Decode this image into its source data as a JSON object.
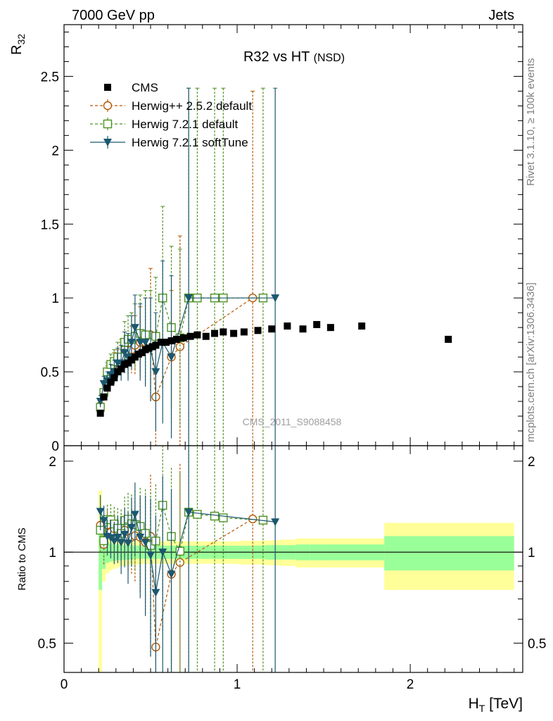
{
  "header": {
    "left": "7000 GeV pp",
    "right": "Jets",
    "side_top": "Rivet 3.1.10, ≥ 100k events",
    "side_bottom": "mcplots.cern.ch [arXiv:1306.3436]",
    "watermark": "CMS_2011_S9088458"
  },
  "chart_data": {
    "type": "scatter",
    "title": "R32 vs HT",
    "title_suffix": "(NSD)",
    "ylabel": "R",
    "ylabel_sub": "32",
    "xlabel": "H",
    "xlabel_sub": "T",
    "xlabel_unit": " [TeV]",
    "ratio_ylabel": "Ratio to CMS",
    "xlim": [
      0,
      2.65
    ],
    "ylim": [
      0,
      2.85
    ],
    "ratio_ylim": [
      0.4,
      2.25
    ],
    "x_ticks": [
      "0",
      "1",
      "2"
    ],
    "y_ticks": [
      "0",
      "0.5",
      "1",
      "1.5",
      "2",
      "2.5"
    ],
    "ratio_y_ticks": [
      "0.5",
      "1",
      "2"
    ],
    "legend_position": "top-left",
    "colors": {
      "cms": "#000000",
      "herwigpp": "#b35806",
      "herwig721": "#4d9221",
      "softtune": "#1b5870",
      "band_inner": "#99ff99",
      "band_outer": "#ffff99"
    },
    "series": [
      {
        "name": "CMS",
        "marker": "square-filled",
        "x": [
          0.21,
          0.23,
          0.25,
          0.27,
          0.29,
          0.31,
          0.33,
          0.35,
          0.37,
          0.39,
          0.41,
          0.43,
          0.45,
          0.47,
          0.49,
          0.51,
          0.53,
          0.56,
          0.59,
          0.62,
          0.65,
          0.69,
          0.73,
          0.77,
          0.82,
          0.87,
          0.92,
          0.98,
          1.04,
          1.12,
          1.2,
          1.29,
          1.38,
          1.46,
          1.54,
          1.72,
          2.22
        ],
        "y": [
          0.22,
          0.33,
          0.39,
          0.43,
          0.46,
          0.5,
          0.52,
          0.55,
          0.56,
          0.58,
          0.6,
          0.62,
          0.63,
          0.65,
          0.66,
          0.67,
          0.68,
          0.7,
          0.7,
          0.71,
          0.72,
          0.73,
          0.74,
          0.75,
          0.74,
          0.76,
          0.77,
          0.76,
          0.77,
          0.78,
          0.79,
          0.81,
          0.79,
          0.82,
          0.8,
          0.81,
          0.72
        ]
      },
      {
        "name": "Herwig++ 2.5.2 default",
        "marker": "circle-open",
        "x": [
          0.21,
          0.23,
          0.25,
          0.27,
          0.29,
          0.31,
          0.33,
          0.35,
          0.37,
          0.39,
          0.41,
          0.44,
          0.47,
          0.5,
          0.53,
          0.62,
          0.67,
          1.09
        ],
        "y": [
          0.27,
          0.35,
          0.48,
          0.5,
          0.55,
          0.56,
          0.6,
          0.65,
          0.62,
          0.65,
          0.68,
          0.7,
          0.7,
          0.75,
          0.33,
          0.6,
          0.67,
          1.0
        ],
        "yerr": [
          0.04,
          0.05,
          0.06,
          0.07,
          0.08,
          0.09,
          0.1,
          0.12,
          0.14,
          0.16,
          0.2,
          0.24,
          0.3,
          0.45,
          0.35,
          0.45,
          0.75,
          1.4
        ]
      },
      {
        "name": "Herwig 7.2.1 default",
        "marker": "square-open",
        "x": [
          0.21,
          0.23,
          0.25,
          0.27,
          0.29,
          0.31,
          0.33,
          0.35,
          0.37,
          0.39,
          0.41,
          0.44,
          0.47,
          0.5,
          0.53,
          0.57,
          0.62,
          0.67,
          0.72,
          0.77,
          0.87,
          0.92,
          1.15
        ],
        "y": [
          0.26,
          0.36,
          0.5,
          0.55,
          0.57,
          0.6,
          0.6,
          0.7,
          0.72,
          0.72,
          0.74,
          0.76,
          0.75,
          0.7,
          0.74,
          1.0,
          0.8,
          0.73,
          1.0,
          1.0,
          1.0,
          1.0,
          1.0
        ],
        "yerr": [
          0.04,
          0.05,
          0.06,
          0.07,
          0.08,
          0.1,
          0.12,
          0.14,
          0.16,
          0.18,
          0.22,
          0.26,
          0.3,
          0.35,
          0.4,
          0.62,
          0.55,
          0.6,
          1.42,
          1.42,
          1.42,
          1.42,
          1.42
        ]
      },
      {
        "name": "Herwig 7.2.1 softTune",
        "marker": "triangle-down-filled",
        "x": [
          0.21,
          0.23,
          0.25,
          0.27,
          0.29,
          0.31,
          0.33,
          0.35,
          0.37,
          0.39,
          0.41,
          0.44,
          0.47,
          0.5,
          0.53,
          0.57,
          0.62,
          0.72,
          1.22
        ],
        "y": [
          0.3,
          0.42,
          0.44,
          0.48,
          0.5,
          0.56,
          0.56,
          0.63,
          0.6,
          0.7,
          0.8,
          0.7,
          0.7,
          0.65,
          0.5,
          0.7,
          0.6,
          1.0,
          1.0
        ],
        "yerr": [
          0.04,
          0.05,
          0.06,
          0.07,
          0.08,
          0.1,
          0.12,
          0.14,
          0.16,
          0.18,
          0.22,
          0.26,
          0.3,
          0.35,
          0.4,
          0.55,
          0.55,
          1.42,
          1.42
        ]
      }
    ],
    "ratio_bands": {
      "x_edges": [
        0.2,
        0.22,
        0.24,
        0.26,
        0.28,
        0.3,
        0.32,
        0.34,
        0.36,
        0.38,
        0.4,
        0.42,
        0.44,
        0.46,
        0.48,
        0.5,
        0.52,
        0.54,
        0.575,
        0.605,
        0.635,
        0.67,
        0.71,
        0.75,
        0.79,
        0.845,
        0.895,
        0.95,
        1.01,
        1.08,
        1.16,
        1.25,
        1.34,
        1.42,
        1.5,
        1.85,
        2.6
      ],
      "inner_half": [
        0.25,
        0.12,
        0.08,
        0.07,
        0.065,
        0.06,
        0.06,
        0.055,
        0.055,
        0.055,
        0.05,
        0.05,
        0.05,
        0.05,
        0.05,
        0.05,
        0.05,
        0.05,
        0.05,
        0.05,
        0.05,
        0.05,
        0.05,
        0.05,
        0.05,
        0.05,
        0.05,
        0.05,
        0.05,
        0.05,
        0.055,
        0.055,
        0.06,
        0.06,
        0.06,
        0.13
      ],
      "outer_half": [
        0.6,
        0.2,
        0.15,
        0.13,
        0.12,
        0.11,
        0.1,
        0.1,
        0.095,
        0.09,
        0.09,
        0.09,
        0.088,
        0.085,
        0.085,
        0.085,
        0.085,
        0.085,
        0.085,
        0.085,
        0.085,
        0.085,
        0.085,
        0.085,
        0.085,
        0.085,
        0.085,
        0.085,
        0.09,
        0.09,
        0.095,
        0.1,
        0.11,
        0.11,
        0.11,
        0.25
      ]
    }
  }
}
